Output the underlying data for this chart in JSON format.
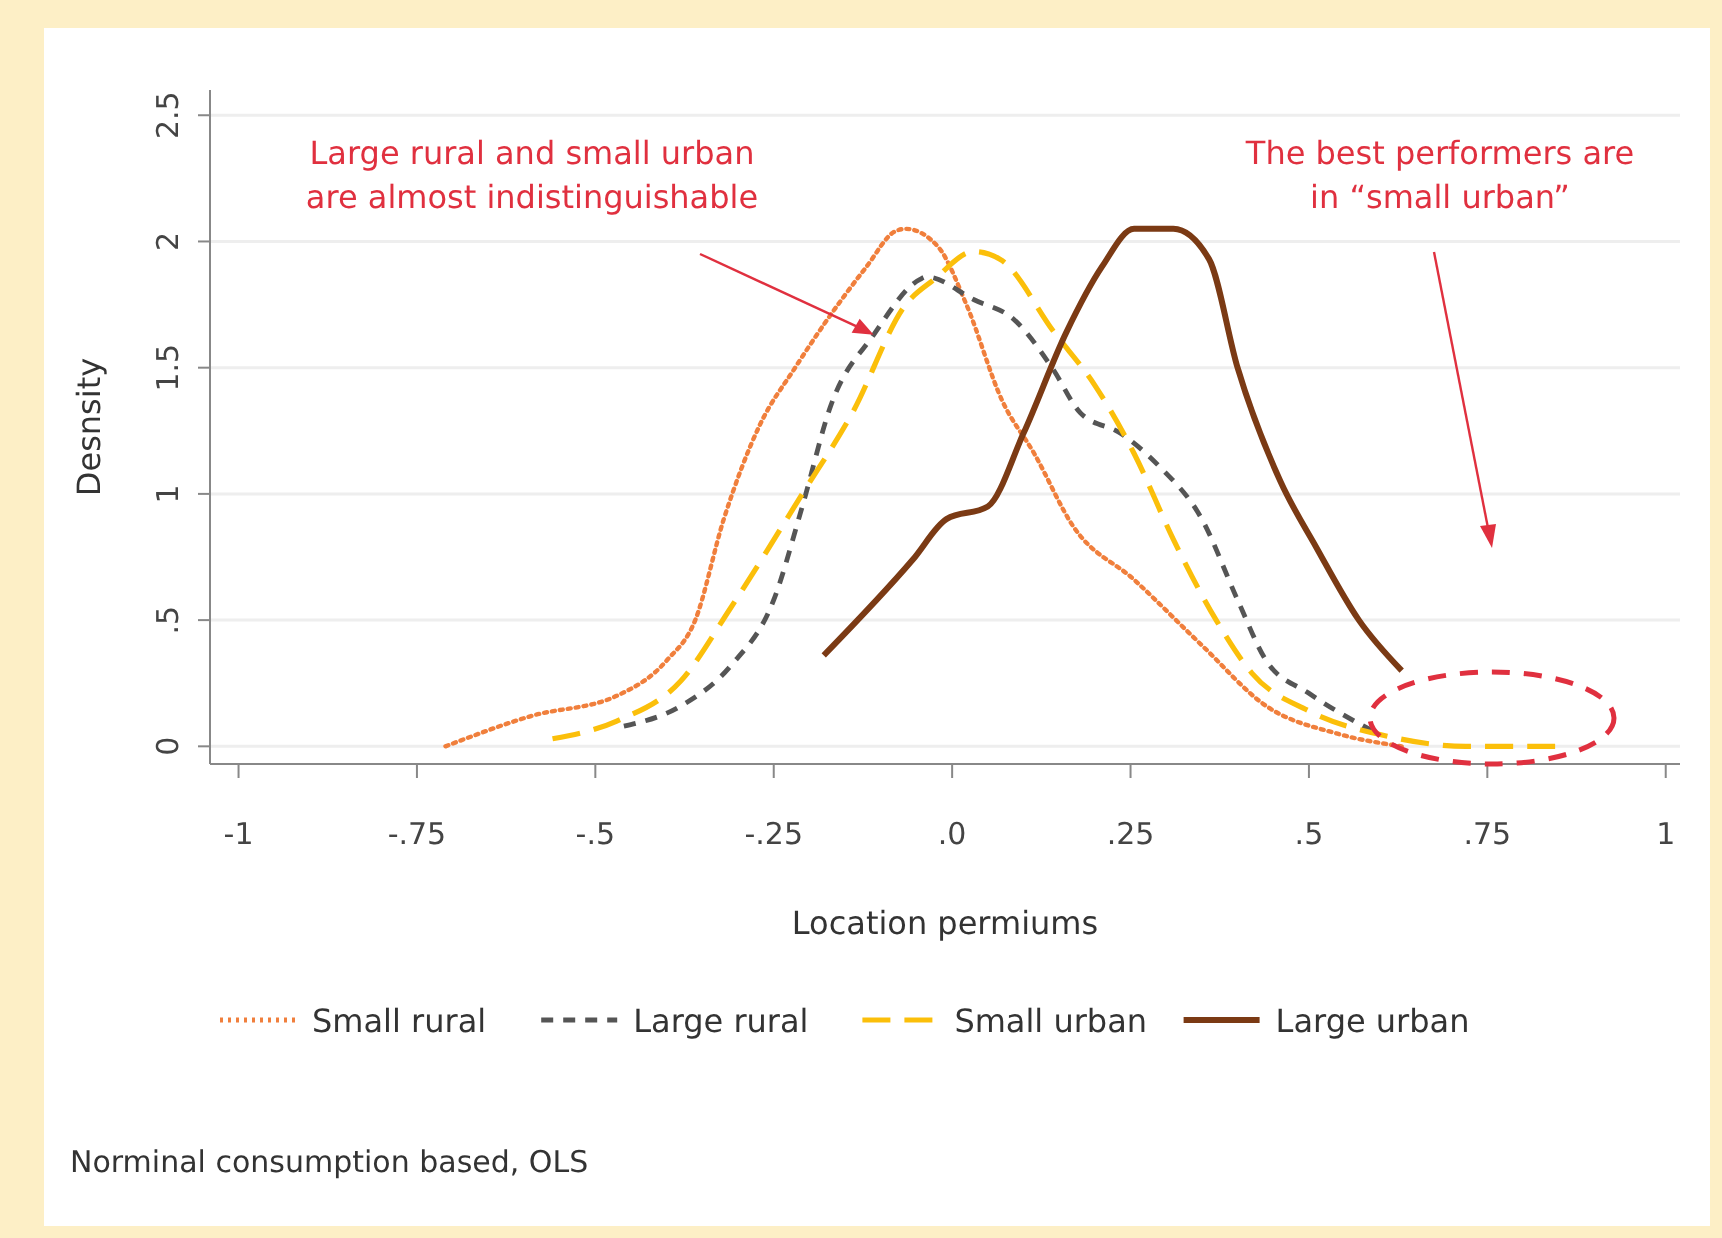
{
  "chart_data": {
    "type": "line",
    "xlabel": "Location permiums",
    "ylabel": "Desnsity",
    "xlim": [
      -1.04,
      1.02
    ],
    "ylim": [
      -0.07,
      2.6
    ],
    "xticks": [
      {
        "value": -1,
        "label": "-1"
      },
      {
        "value": -0.75,
        "label": "-.75"
      },
      {
        "value": -0.5,
        "label": "-.5"
      },
      {
        "value": -0.25,
        "label": "-.25"
      },
      {
        "value": 0,
        "label": ".0"
      },
      {
        "value": 0.25,
        "label": ".25"
      },
      {
        "value": 0.5,
        "label": ".5"
      },
      {
        "value": 0.75,
        "label": ".75"
      },
      {
        "value": 1,
        "label": "1"
      }
    ],
    "yticks": [
      0,
      {
        "value": 0.5,
        "label": ".5"
      },
      1,
      1.5,
      2,
      2.5
    ],
    "grid": "y",
    "legend": "bottom",
    "marker": "none",
    "series": [
      {
        "name": "Small rural",
        "color": "#f07f3c",
        "line_style": "dotted",
        "x": [
          -0.71,
          -0.59,
          -0.47,
          -0.4,
          -0.36,
          -0.32,
          -0.27,
          -0.22,
          -0.18,
          -0.12,
          -0.08,
          -0.065,
          -0.02,
          0.02,
          0.07,
          0.115,
          0.17,
          0.255,
          0.35,
          0.44,
          0.54,
          0.63
        ],
        "values": [
          0,
          0.12,
          0.2,
          0.34,
          0.5,
          0.9,
          1.27,
          1.5,
          1.67,
          1.9,
          2.04,
          2.05,
          1.98,
          1.75,
          1.37,
          1.16,
          0.87,
          0.66,
          0.4,
          0.16,
          0.05,
          0
        ]
      },
      {
        "name": "Large rural",
        "color": "#555555",
        "line_style": "dashed",
        "x": [
          -0.46,
          -0.38,
          -0.31,
          -0.25,
          -0.21,
          -0.17,
          -0.11,
          -0.045,
          -0.036,
          0.03,
          0.087,
          0.14,
          0.18,
          0.236,
          0.29,
          0.35,
          0.4,
          0.44,
          0.5,
          0.59
        ],
        "values": [
          0.08,
          0.16,
          0.32,
          0.58,
          0.95,
          1.35,
          1.63,
          1.85,
          1.86,
          1.77,
          1.69,
          1.5,
          1.32,
          1.24,
          1.11,
          0.9,
          0.58,
          0.34,
          0.21,
          0.06
        ]
      },
      {
        "name": "Small urban",
        "color": "#fbbf0a",
        "line_style": "dashed",
        "x": [
          -0.56,
          -0.47,
          -0.38,
          -0.31,
          -0.21,
          -0.14,
          -0.065,
          -0.025,
          0.03,
          0.067,
          0.143,
          0.2,
          0.255,
          0.31,
          0.37,
          0.42,
          0.5,
          0.61,
          0.72,
          0.845
        ],
        "values": [
          0.03,
          0.1,
          0.26,
          0.55,
          1,
          1.32,
          1.75,
          1.85,
          1.96,
          1.93,
          1.64,
          1.43,
          1.16,
          0.82,
          0.5,
          0.29,
          0.14,
          0.04,
          0,
          0
        ]
      },
      {
        "name": "Large urban",
        "color": "#7b3a14",
        "line_style": "solid",
        "x": [
          -0.18,
          -0.055,
          -0.008,
          0.05,
          0.1,
          0.16,
          0.21,
          0.255,
          0.31,
          0.36,
          0.4,
          0.46,
          0.51,
          0.57,
          0.63
        ],
        "values": [
          0.36,
          0.74,
          0.9,
          0.95,
          1.24,
          1.64,
          1.9,
          2.05,
          2.05,
          1.93,
          1.5,
          1.05,
          0.79,
          0.5,
          0.3
        ]
      }
    ],
    "annotations": [
      {
        "text": "Large rural and small urban\nare almost indistinguishable",
        "x": -0.11,
        "y": 1.63
      },
      "The best performers are\nin “small urban”",
      "Norminal consumption based, OLS"
    ]
  }
}
